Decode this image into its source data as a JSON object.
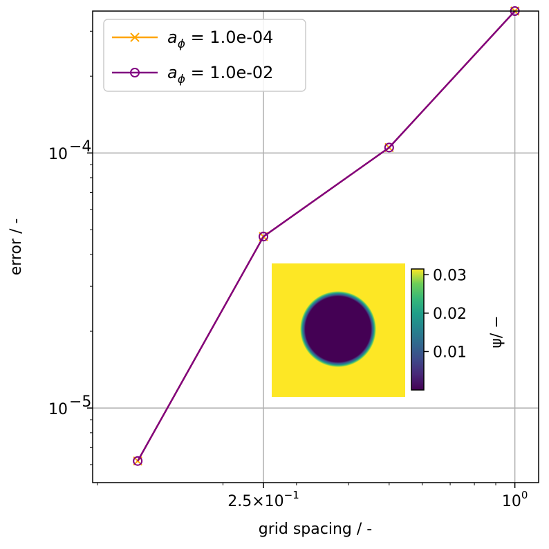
{
  "chart_data": {
    "type": "line",
    "xscale": "log",
    "yscale": "log",
    "xlabel": "grid spacing / -",
    "ylabel": "error / -",
    "xlim": [
      0.0975,
      1.14
    ],
    "ylim": [
      5.1e-06,
      0.00036
    ],
    "xticks": [
      {
        "value": 0.25,
        "label": "2.5×10",
        "exp": "−1"
      },
      {
        "value": 1.0,
        "label": "10",
        "exp": "0"
      }
    ],
    "yticks": [
      {
        "value": 1e-05,
        "label": "10",
        "exp": "−5"
      },
      {
        "value": 0.0001,
        "label": "10",
        "exp": "−4"
      }
    ],
    "grid": true,
    "legend_position": "top-left",
    "series": [
      {
        "name_base": "a",
        "name_sub": "ϕ",
        "name_value": " =  1.0e-04",
        "color": "#ffa500",
        "marker": "x",
        "x": [
          0.125,
          0.25,
          0.5,
          1.0
        ],
        "y": [
          6.2e-06,
          4.7e-05,
          0.000105,
          0.00036
        ]
      },
      {
        "name_base": "a",
        "name_sub": "ϕ",
        "name_value": " =  1.0e-02",
        "color": "#800080",
        "marker": "o",
        "x": [
          0.125,
          0.25,
          0.5,
          1.0
        ],
        "y": [
          6.2e-06,
          4.7e-05,
          0.000105,
          0.00036
        ]
      }
    ],
    "inset": {
      "description_colormap": "viridis",
      "circle_value_min": 0.0,
      "background_value": 0.032,
      "colorbar_ticks": [
        "0.03",
        "0.02",
        "0.01"
      ],
      "colorbar_tick_values": [
        0.03,
        0.02,
        0.01
      ],
      "colorbar_range": [
        0.0,
        0.0315
      ],
      "colorbar_label": "ψ/ −"
    }
  }
}
